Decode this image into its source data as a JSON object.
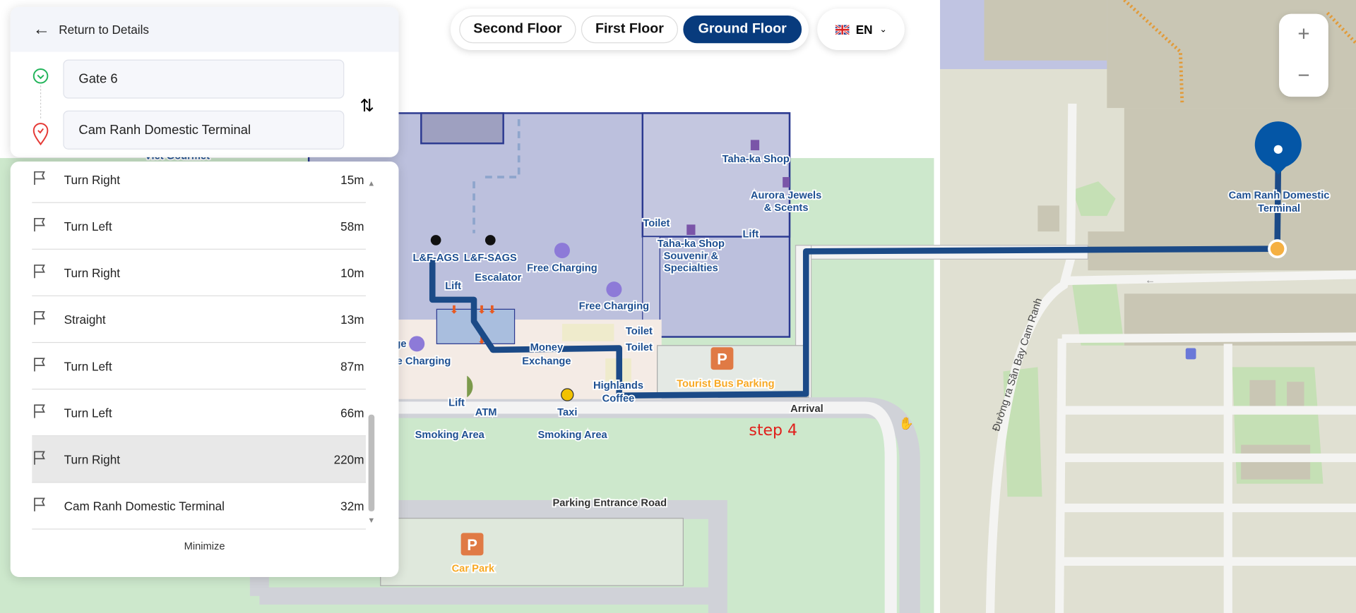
{
  "panel": {
    "back_label": "Return to Details",
    "origin": "Gate 6",
    "destination": "Cam Ranh Domestic Terminal",
    "minimize_label": "Minimize"
  },
  "steps": [
    {
      "label": "Turn Right",
      "distance": "15m"
    },
    {
      "label": "Turn Left",
      "distance": "58m"
    },
    {
      "label": "Turn Right",
      "distance": "10m"
    },
    {
      "label": "Straight",
      "distance": "13m"
    },
    {
      "label": "Turn Left",
      "distance": "87m"
    },
    {
      "label": "Turn Left",
      "distance": "66m"
    },
    {
      "label": "Turn Right",
      "distance": "220m",
      "selected": true
    },
    {
      "label": "Cam Ranh Domestic Terminal",
      "distance": "32m"
    }
  ],
  "floors": {
    "second": "Second Floor",
    "first": "First Floor",
    "ground": "Ground Floor",
    "active": "Ground Floor"
  },
  "language": {
    "code": "EN"
  },
  "zoom": {
    "in": "+",
    "out": "−"
  },
  "map": {
    "labels": {
      "viet_gourmet": "Viet Gourmet",
      "taha_shop": "Taha-ka Shop",
      "aurora1": "Aurora Jewels",
      "aurora2": "& Scents",
      "toilet1": "Toilet",
      "lift1": "Lift",
      "taha2a": "Taha-ka Shop",
      "taha2b": "Souvenir &",
      "taha2c": "Specialties",
      "lf_ags": "L&F-AGS",
      "lf_sags": "L&F-SAGS",
      "lift2": "Lift",
      "escalator": "Escalator",
      "free_charging1": "Free Charging",
      "free_charging2": "Free Charging",
      "toilet2": "Toilet",
      "toilet3": "Toilet",
      "money1": "Money",
      "money2": "Exchange",
      "charging3": "e Charging",
      "ge": "ge",
      "lift3": "Lift",
      "atm": "ATM",
      "taxi": "Taxi",
      "highlands1": "Highlands",
      "highlands2": "Coffee",
      "bus_parking": "Tourist Bus Parking",
      "arrival": "Arrival",
      "smoking1": "Smoking Area",
      "smoking2": "Smoking Area",
      "parking_road": "Parking Entrance Road",
      "car_park": "Car Park",
      "parking_p": "P",
      "terminal1": "Cam Ranh Domestic",
      "terminal2": "Terminal",
      "street": "Đường ra Sân Bay Cam Ranh",
      "step": "step 4"
    },
    "colors": {
      "route": "#1b4a87",
      "floorplan": "#bcc0dd",
      "border": "#2b3990",
      "grass": "#cde8cc",
      "land": "#e0e0d2",
      "building": "#c9c6b4",
      "water": "#c0c4e2",
      "parking": "#e07a45",
      "destination_pin": "#0456a6",
      "current": "#f5b042"
    }
  }
}
